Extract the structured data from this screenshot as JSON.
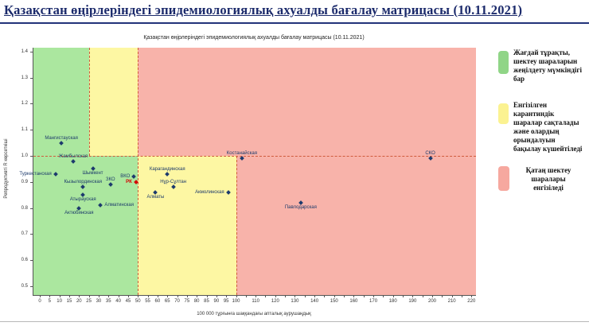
{
  "window": {
    "title": "Қазақстан өңірлеріндегі эпидемиологиялық ахуалды бағалау матрицасы  (10.11.2021)"
  },
  "chart_data": {
    "type": "scatter",
    "title": "Қазақстан өңірлеріндегі эпидемиологиялық ахуалды бағалау матрицасы  (10.11.2021)",
    "xlabel": "100 000 тұрғынға шаққандағы апталық аурушаңдық",
    "ylabel": "Репродуктивті R көрсеткіші",
    "xlim": [
      0,
      222
    ],
    "ylim": [
      0.47,
      1.41
    ],
    "x_tick_labels": [
      0,
      5,
      10,
      15,
      20,
      25,
      30,
      35,
      40,
      45,
      50,
      55,
      60,
      65,
      70,
      75,
      80,
      85,
      90,
      95,
      100,
      110,
      120,
      130,
      140,
      150,
      160,
      170,
      180,
      190,
      200,
      210,
      220
    ],
    "x_minor_tick_step": 5,
    "y_ticks": [
      1.4,
      1.3,
      1.2,
      1.1,
      1.0,
      0.9,
      0.8,
      0.7,
      0.6,
      0.5
    ],
    "r_threshold": 1.0,
    "grid": false,
    "legend_position": "right",
    "zones": {
      "above_r1_thresholds": [
        25,
        50
      ],
      "below_r1_thresholds": [
        50,
        100
      ],
      "colors": {
        "green": "#abe79f",
        "yellow": "#fdf7a3",
        "red": "#f8b3aa"
      },
      "boundary_line_color": "#cf5b3c"
    },
    "point_color": "#1d3a6d",
    "points": [
      {
        "label": "Мангистауская",
        "x": 11,
        "y": 1.05,
        "label_pos": "above"
      },
      {
        "label": "Жамбылская",
        "x": 17,
        "y": 0.98,
        "label_pos": "above"
      },
      {
        "label": "Туркестанская",
        "x": 8,
        "y": 0.93,
        "label_pos": "left"
      },
      {
        "label": "Шымкент",
        "x": 27,
        "y": 0.95,
        "label_pos": "below"
      },
      {
        "label": "Кызылординская",
        "x": 22,
        "y": 0.88,
        "label_pos": "above"
      },
      {
        "label": "ЗКО",
        "x": 36,
        "y": 0.89,
        "label_pos": "above"
      },
      {
        "label": "ВКО",
        "x": 48,
        "y": 0.92,
        "label_pos": "left"
      },
      {
        "label": "РК",
        "x": 49,
        "y": 0.9,
        "label_pos": "left",
        "color": "#d40000",
        "label_color": "#d40000"
      },
      {
        "label": "Атырауская",
        "x": 22,
        "y": 0.85,
        "label_pos": "below"
      },
      {
        "label": "Алматинская",
        "x": 31,
        "y": 0.81,
        "label_pos": "right"
      },
      {
        "label": "Актюбинская",
        "x": 20,
        "y": 0.8,
        "label_pos": "below"
      },
      {
        "label": "Карагандинская",
        "x": 65,
        "y": 0.93,
        "label_pos": "above"
      },
      {
        "label": "Нұр-Сұлтан",
        "x": 68,
        "y": 0.88,
        "label_pos": "above"
      },
      {
        "label": "Алматы",
        "x": 59,
        "y": 0.86,
        "label_pos": "below"
      },
      {
        "label": "Акмолинская",
        "x": 96,
        "y": 0.86,
        "label_pos": "left"
      },
      {
        "label": "Костанайская",
        "x": 103,
        "y": 0.99,
        "label_pos": "above"
      },
      {
        "label": "Павлодарская",
        "x": 133,
        "y": 0.82,
        "label_pos": "below"
      },
      {
        "label": "СКО",
        "x": 199,
        "y": 0.99,
        "label_pos": "above"
      }
    ],
    "legend": {
      "items": [
        {
          "color": "#90d587",
          "text": "Жағдай тұрақты,\nшектеу шараларын\nжеңілдету мүмкіндігі\nбар"
        },
        {
          "color": "#fbf291",
          "text": "Енгізілген\nкарантиндік\nшаралар сақталады\nжәне олардың\nорындалуын\nбақылау күшейтіледі"
        },
        {
          "color": "#f6a89f",
          "text": "Қатаң шектеу\nшаралары\nенгізіледі"
        }
      ]
    }
  }
}
